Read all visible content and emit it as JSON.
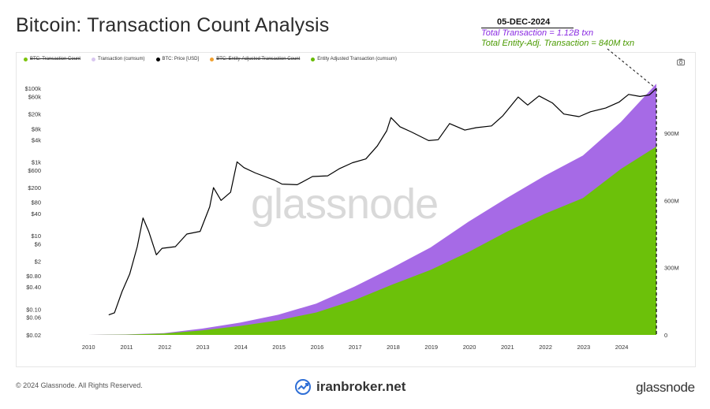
{
  "page": {
    "title": "Bitcoin: Transaction Count Analysis",
    "annotation": {
      "date": "05-DEC-2024",
      "total_tx": "Total Transaction = 1.12B txn",
      "entity_tx": "Total Entity-Adj. Transaction = 840M txn"
    },
    "footer_copyright": "© 2024 Glassnode. All Rights Reserved.",
    "footer_brand_center": "iranbroker.net",
    "footer_brand_right": "glassnode",
    "watermark": "glassnode",
    "camera_icon": "camera-icon"
  },
  "chart_data": {
    "type": "area",
    "legend": [
      {
        "label": "BTC: Transaction Count",
        "color": "#7cc40d",
        "struck": true
      },
      {
        "label": "Transaction (cumsum)",
        "color": "#d9c7f0",
        "struck": false
      },
      {
        "label": "BTC: Price [USD]",
        "color": "#000000",
        "struck": false
      },
      {
        "label": "BTC: Entity-Adjusted Transaction Count",
        "color": "#f0a030",
        "struck": true
      },
      {
        "label": "Entity Adjusted Transaction (cumsum)",
        "color": "#66bb00",
        "struck": false
      }
    ],
    "x_ticks": [
      "2010",
      "2011",
      "2012",
      "2013",
      "2014",
      "2015",
      "2016",
      "2017",
      "2018",
      "2019",
      "2020",
      "2021",
      "2022",
      "2023",
      "2024"
    ],
    "y_left_ticks": [
      "$100k",
      "$60k",
      "$20k",
      "$8k",
      "$4k",
      "$1k",
      "$600",
      "$200",
      "$80",
      "$40",
      "$10",
      "$6",
      "$2",
      "$0.80",
      "$0.40",
      "$0.10",
      "$0.06",
      "$0.02"
    ],
    "y_left_values": [
      100000,
      60000,
      20000,
      8000,
      4000,
      1000,
      600,
      200,
      80,
      40,
      10,
      6,
      2,
      0.8,
      0.4,
      0.1,
      0.06,
      0.02
    ],
    "y_left_scale": "log",
    "y_left_range": [
      0.02,
      100000
    ],
    "y_right_ticks": [
      "900M",
      "600M",
      "300M",
      "0"
    ],
    "y_right_values": [
      900,
      600,
      300,
      0
    ],
    "y_right_range": [
      0,
      1100
    ],
    "x_range": [
      2009.0,
      2024.95
    ],
    "series": [
      {
        "name": "Transaction (cumsum)",
        "axis": "right",
        "color": "#a66ae6",
        "x": [
          2009.0,
          2010.0,
          2011.0,
          2012.0,
          2013.0,
          2014.0,
          2015.0,
          2016.0,
          2017.0,
          2018.0,
          2019.0,
          2020.0,
          2021.0,
          2022.0,
          2023.0,
          2024.0,
          2024.93
        ],
        "y": [
          0,
          0.1,
          2,
          8,
          28,
          55,
          90,
          140,
          215,
          300,
          390,
          505,
          610,
          710,
          800,
          950,
          1120
        ]
      },
      {
        "name": "Entity Adjusted Transaction (cumsum)",
        "axis": "right",
        "color": "#6cc10a",
        "x": [
          2009.0,
          2010.0,
          2011.0,
          2012.0,
          2013.0,
          2014.0,
          2015.0,
          2016.0,
          2017.0,
          2018.0,
          2019.0,
          2020.0,
          2021.0,
          2022.0,
          2023.0,
          2024.0,
          2024.93
        ],
        "y": [
          0,
          0.1,
          1.5,
          6,
          20,
          40,
          65,
          100,
          155,
          225,
          290,
          370,
          460,
          540,
          610,
          740,
          840
        ]
      },
      {
        "name": "BTC: Price [USD]",
        "axis": "left",
        "color": "#000000",
        "x": [
          2010.55,
          2010.7,
          2010.9,
          2011.1,
          2011.3,
          2011.45,
          2011.6,
          2011.8,
          2011.95,
          2012.3,
          2012.6,
          2012.95,
          2013.2,
          2013.3,
          2013.5,
          2013.75,
          2013.92,
          2014.1,
          2014.4,
          2014.9,
          2015.1,
          2015.5,
          2015.9,
          2016.3,
          2016.6,
          2016.95,
          2017.3,
          2017.6,
          2017.85,
          2017.96,
          2018.2,
          2018.5,
          2018.95,
          2019.2,
          2019.5,
          2019.9,
          2020.2,
          2020.6,
          2020.9,
          2021.3,
          2021.55,
          2021.85,
          2022.2,
          2022.5,
          2022.9,
          2023.2,
          2023.6,
          2023.95,
          2024.2,
          2024.5,
          2024.75,
          2024.93
        ],
        "y": [
          0.07,
          0.08,
          0.3,
          0.9,
          5,
          30,
          13,
          3,
          4.5,
          5,
          11,
          13,
          60,
          200,
          90,
          150,
          1000,
          700,
          500,
          320,
          250,
          240,
          400,
          420,
          650,
          950,
          1200,
          2700,
          7000,
          16000,
          9000,
          6500,
          3800,
          4000,
          11000,
          7300,
          8500,
          9500,
          18000,
          58000,
          35000,
          62000,
          40000,
          20000,
          17000,
          23000,
          29000,
          42000,
          68000,
          60000,
          66000,
          99000
        ]
      }
    ]
  }
}
